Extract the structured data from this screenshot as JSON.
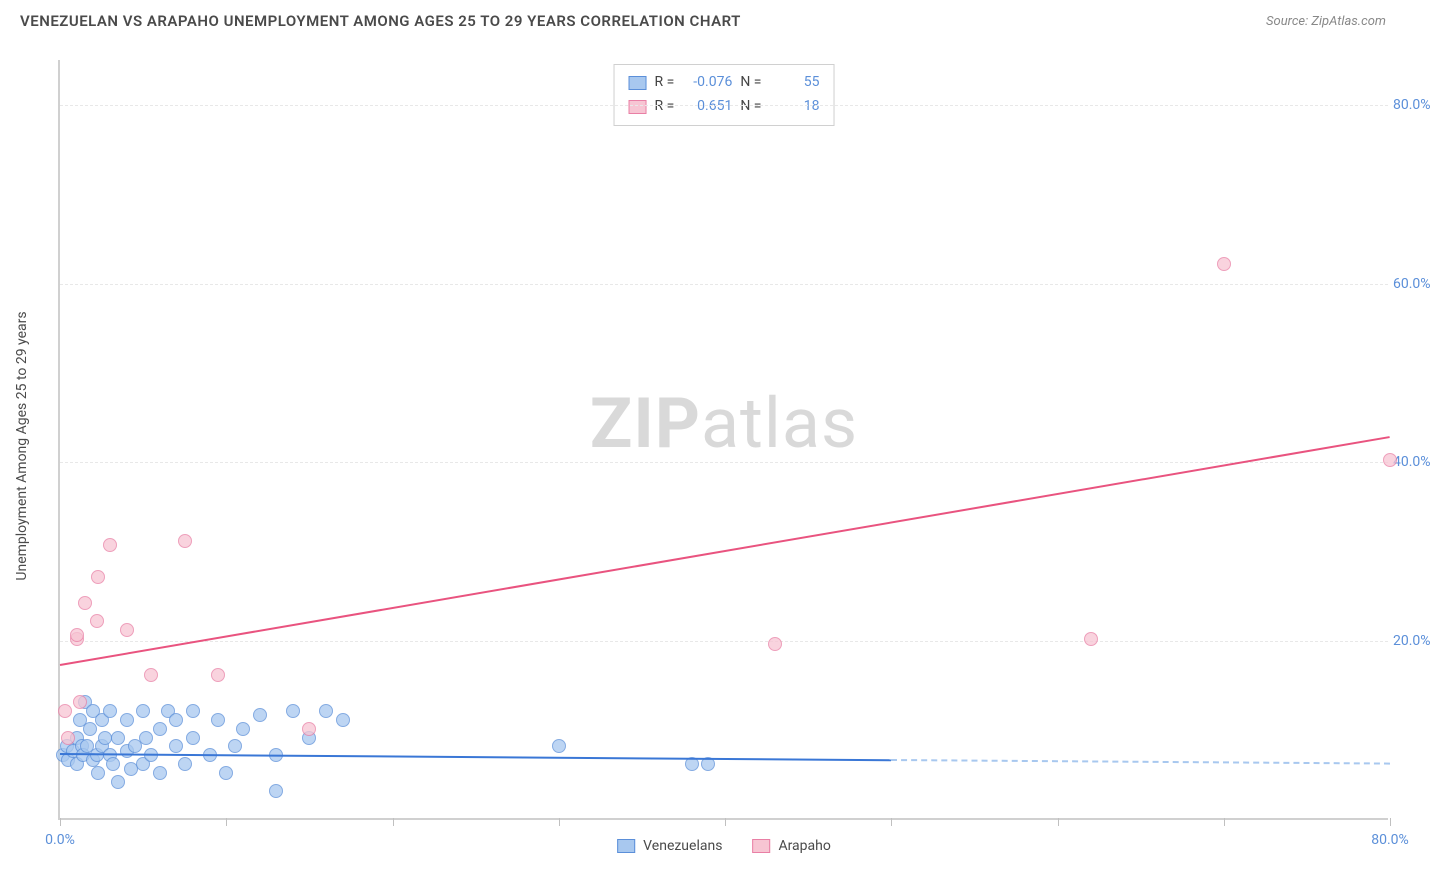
{
  "header": {
    "title": "VENEZUELAN VS ARAPAHO UNEMPLOYMENT AMONG AGES 25 TO 29 YEARS CORRELATION CHART",
    "source": "Source: ZipAtlas.com"
  },
  "watermark": {
    "bold": "ZIP",
    "rest": "atlas"
  },
  "chart": {
    "type": "scatter",
    "ylabel": "Unemployment Among Ages 25 to 29 years",
    "xlim": [
      0,
      80
    ],
    "ylim": [
      0,
      85
    ],
    "background": "#ffffff",
    "grid_color": "#e8e8e8",
    "axis_color": "#d0d0d0",
    "tick_color": "#5b8fd9",
    "yticks": [
      20,
      40,
      60,
      80
    ],
    "ytick_labels": [
      "20.0%",
      "40.0%",
      "60.0%",
      "80.0%"
    ],
    "xtick_marks": [
      0,
      10,
      20,
      30,
      40,
      50,
      60,
      70,
      80
    ],
    "xtick_labels": [
      {
        "x": 0,
        "label": "0.0%"
      },
      {
        "x": 80,
        "label": "80.0%"
      }
    ],
    "marker_radius": 7,
    "marker_border_width": 1.2,
    "series": [
      {
        "name": "Venezuelans",
        "fill": "#a8c8ef",
        "stroke": "#5b8fd9",
        "opacity": 0.75,
        "r_label": "R =",
        "r_value": "-0.076",
        "n_label": "N =",
        "n_value": "55",
        "trend": {
          "color": "#3a77d6",
          "solid_x0": 0,
          "solid_y0": 7.5,
          "solid_x1": 50,
          "solid_y1": 6.8,
          "dash_x1": 80,
          "dash_y1": 6.4
        },
        "points": [
          [
            0.2,
            7
          ],
          [
            0.4,
            8
          ],
          [
            0.5,
            6.5
          ],
          [
            0.8,
            7.5
          ],
          [
            1,
            9
          ],
          [
            1,
            6
          ],
          [
            1.2,
            11
          ],
          [
            1.3,
            8
          ],
          [
            1.4,
            7
          ],
          [
            1.5,
            13
          ],
          [
            1.6,
            8
          ],
          [
            1.8,
            10
          ],
          [
            2,
            6.5
          ],
          [
            2,
            12
          ],
          [
            2.2,
            7
          ],
          [
            2.3,
            5
          ],
          [
            2.5,
            8
          ],
          [
            2.5,
            11
          ],
          [
            2.7,
            9
          ],
          [
            3,
            7
          ],
          [
            3,
            12
          ],
          [
            3.2,
            6
          ],
          [
            3.5,
            9
          ],
          [
            3.5,
            4
          ],
          [
            4,
            11
          ],
          [
            4,
            7.5
          ],
          [
            4.3,
            5.5
          ],
          [
            4.5,
            8
          ],
          [
            5,
            12
          ],
          [
            5,
            6
          ],
          [
            5.2,
            9
          ],
          [
            5.5,
            7
          ],
          [
            6,
            5
          ],
          [
            6,
            10
          ],
          [
            6.5,
            12
          ],
          [
            7,
            8
          ],
          [
            7,
            11
          ],
          [
            7.5,
            6
          ],
          [
            8,
            12
          ],
          [
            8,
            9
          ],
          [
            9,
            7
          ],
          [
            9.5,
            11
          ],
          [
            10,
            5
          ],
          [
            10.5,
            8
          ],
          [
            11,
            10
          ],
          [
            12,
            11.5
          ],
          [
            13,
            7
          ],
          [
            13,
            3
          ],
          [
            14,
            12
          ],
          [
            15,
            9
          ],
          [
            16,
            12
          ],
          [
            17,
            11
          ],
          [
            30,
            8
          ],
          [
            38,
            6
          ],
          [
            39,
            6
          ]
        ]
      },
      {
        "name": "Arapaho",
        "fill": "#f7c5d3",
        "stroke": "#e97fa5",
        "opacity": 0.75,
        "r_label": "R =",
        "r_value": "0.651",
        "n_label": "N =",
        "n_value": "18",
        "trend": {
          "color": "#e9537f",
          "solid_x0": 0,
          "solid_y0": 17.5,
          "solid_x1": 80,
          "solid_y1": 43,
          "dash_x1": 80,
          "dash_y1": 43
        },
        "points": [
          [
            0.3,
            12
          ],
          [
            0.5,
            9
          ],
          [
            1,
            20
          ],
          [
            1,
            20.5
          ],
          [
            1.2,
            13
          ],
          [
            1.5,
            24
          ],
          [
            2.2,
            22
          ],
          [
            2.3,
            27
          ],
          [
            3,
            30.5
          ],
          [
            4,
            21
          ],
          [
            5.5,
            16
          ],
          [
            7.5,
            31
          ],
          [
            9.5,
            16
          ],
          [
            15,
            10
          ],
          [
            43,
            19.5
          ],
          [
            62,
            20
          ],
          [
            70,
            62
          ],
          [
            80,
            40
          ]
        ]
      }
    ],
    "legend_bottom": [
      {
        "label": "Venezuelans",
        "fill": "#a8c8ef",
        "stroke": "#5b8fd9"
      },
      {
        "label": "Arapaho",
        "fill": "#f7c5d3",
        "stroke": "#e97fa5"
      }
    ]
  }
}
